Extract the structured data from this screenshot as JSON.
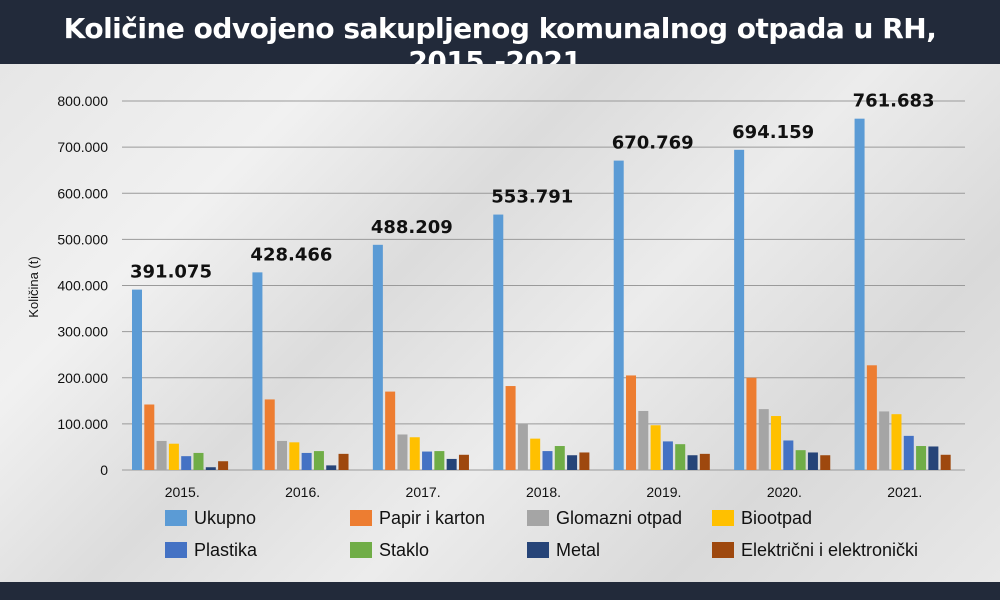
{
  "header": {
    "title": "Količine odvojeno sakupljenog komunalnog otpada u RH, 2015.-2021."
  },
  "chart_data": {
    "type": "bar",
    "title": "Količine odvojeno sakupljenog komunalnog otpada u RH, 2015.-2021.",
    "ylabel": "Količina (t)",
    "xlabel": "",
    "ylim": [
      0,
      800000
    ],
    "yticks": [
      0,
      100000,
      200000,
      300000,
      400000,
      500000,
      600000,
      700000,
      800000
    ],
    "ytick_labels": [
      "0",
      "100.000",
      "200.000",
      "300.000",
      "400.000",
      "500.000",
      "600.000",
      "700.000",
      "800.000"
    ],
    "grid": true,
    "legend_position": "bottom",
    "categories": [
      "2015.",
      "2016.",
      "2017.",
      "2018.",
      "2019.",
      "2020.",
      "2021."
    ],
    "series": [
      {
        "name": "Ukupno",
        "color": "#5b9bd5",
        "values": [
          391075,
          428466,
          488209,
          553791,
          670769,
          694159,
          761683
        ],
        "labels": [
          "391.075",
          "428.466",
          "488.209",
          "553.791",
          "670.769",
          "694.159",
          "761.683"
        ]
      },
      {
        "name": "Papir i karton",
        "color": "#ed7d31",
        "values": [
          142000,
          153000,
          170000,
          182000,
          205000,
          200000,
          227000
        ]
      },
      {
        "name": "Glomazni otpad",
        "color": "#a5a5a5",
        "values": [
          63000,
          63000,
          77000,
          101000,
          128000,
          132000,
          127000
        ]
      },
      {
        "name": "Biootpad",
        "color": "#ffc000",
        "values": [
          57000,
          60000,
          71000,
          68000,
          97000,
          117000,
          121000
        ]
      },
      {
        "name": "Plastika",
        "color": "#4472c4",
        "values": [
          30000,
          37000,
          40000,
          41000,
          62000,
          64000,
          74000
        ]
      },
      {
        "name": "Staklo",
        "color": "#70ad47",
        "values": [
          37000,
          41000,
          41000,
          52000,
          56000,
          43000,
          52000
        ]
      },
      {
        "name": "Metal",
        "color": "#264478",
        "values": [
          6000,
          10000,
          24000,
          32000,
          32000,
          38000,
          51000
        ]
      },
      {
        "name": "Električni i elektronički",
        "color": "#9e480e",
        "values": [
          19000,
          35000,
          33000,
          38000,
          35000,
          32000,
          33000
        ]
      }
    ]
  }
}
